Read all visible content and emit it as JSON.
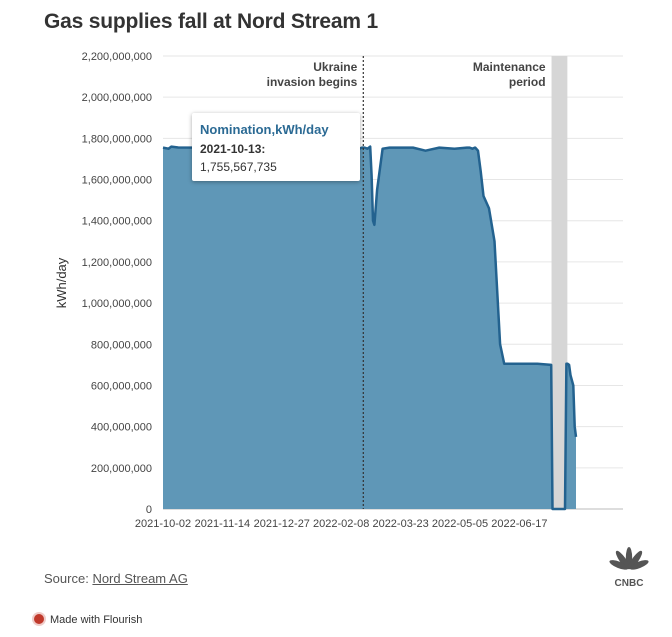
{
  "title": "Gas supplies fall at Nord Stream 1",
  "source": {
    "label": "Source:",
    "link": "Nord Stream AG"
  },
  "credit": "Made with Flourish",
  "logo_text": "CNBC",
  "colors": {
    "area": "#5f97b7",
    "line": "#23628f",
    "band": "#d6d6d6",
    "tooltip_title": "#2b6a94"
  },
  "tooltip": {
    "title": "Nomination,kWh/day",
    "date": "2021-10-13:",
    "value": "1,755,567,735"
  },
  "chart_data": {
    "type": "area",
    "title": "Gas supplies fall at Nord Stream 1",
    "ylabel": "kWh/day",
    "xlabel": "",
    "ylim": [
      0,
      2200000000
    ],
    "xlim": [
      "2021-10-02",
      "2022-08-31"
    ],
    "yticks": [
      "0",
      "200,000,000",
      "400,000,000",
      "600,000,000",
      "800,000,000",
      "1,000,000,000",
      "1,200,000,000",
      "1,400,000,000",
      "1,600,000,000",
      "1,800,000,000",
      "2,000,000,000",
      "2,200,000,000"
    ],
    "ytick_values": [
      0,
      200000000,
      400000000,
      600000000,
      800000000,
      1000000000,
      1200000000,
      1400000000,
      1600000000,
      1800000000,
      2000000000,
      2200000000
    ],
    "xticks": [
      "2021-10-02",
      "2021-11-14",
      "2021-12-27",
      "2022-02-08",
      "2022-03-23",
      "2022-05-05",
      "2022-06-17"
    ],
    "grid": true,
    "series": [
      {
        "name": "Nomination,kWh/day",
        "x": [
          "2021-10-02",
          "2021-10-06",
          "2021-10-08",
          "2021-10-13",
          "2021-11-01",
          "2021-11-20",
          "2021-12-10",
          "2022-01-10",
          "2022-01-18",
          "2022-01-19",
          "2022-01-20",
          "2022-01-22",
          "2022-01-24",
          "2022-01-25",
          "2022-01-26",
          "2022-01-28",
          "2022-02-01",
          "2022-02-05",
          "2022-02-10",
          "2022-02-14",
          "2022-02-20",
          "2022-02-21",
          "2022-02-23",
          "2022-02-25",
          "2022-02-27",
          "2022-03-01",
          "2022-03-02",
          "2022-03-03",
          "2022-03-04",
          "2022-03-06",
          "2022-03-10",
          "2022-03-15",
          "2022-03-20",
          "2022-04-01",
          "2022-04-10",
          "2022-04-20",
          "2022-05-01",
          "2022-05-10",
          "2022-05-12",
          "2022-05-14",
          "2022-05-16",
          "2022-05-18",
          "2022-05-20",
          "2022-05-22",
          "2022-05-26",
          "2022-05-30",
          "2022-06-01",
          "2022-06-03",
          "2022-06-06",
          "2022-06-08",
          "2022-06-10",
          "2022-06-11",
          "2022-06-12",
          "2022-06-13",
          "2022-06-14",
          "2022-06-15",
          "2022-06-17",
          "2022-06-20",
          "2022-06-30",
          "2022-07-10",
          "2022-07-11",
          "2022-07-12",
          "2022-07-20",
          "2022-07-21",
          "2022-07-22",
          "2022-07-23",
          "2022-07-24",
          "2022-07-26",
          "2022-07-27",
          "2022-07-28"
        ],
        "values": [
          1755000000,
          1750000000,
          1760000000,
          1755567735,
          1755000000,
          1750000000,
          1755000000,
          1755000000,
          1740000000,
          1650000000,
          1750000000,
          1640000000,
          1650000000,
          1750000000,
          1760000000,
          1650000000,
          1750000000,
          1755000000,
          1755000000,
          1755000000,
          1755000000,
          1750000000,
          1755000000,
          1755000000,
          1750000000,
          1760000000,
          1620000000,
          1400000000,
          1380000000,
          1550000000,
          1750000000,
          1755000000,
          1755000000,
          1755000000,
          1740000000,
          1755000000,
          1750000000,
          1755000000,
          1755000000,
          1750000000,
          1755000000,
          1740000000,
          1640000000,
          1520000000,
          1460000000,
          1300000000,
          1050000000,
          800000000,
          705000000,
          705000000,
          705000000,
          705000000,
          705000000,
          705000000,
          705000000,
          705000000,
          705000000,
          705000000,
          705000000,
          700000000,
          0,
          0,
          0,
          705000000,
          705000000,
          700000000,
          650000000,
          600000000,
          400000000,
          350000000
        ]
      }
    ],
    "annotations": [
      {
        "label": "Ukraine invasion begins",
        "lines": [
          "Ukraine",
          "invasion begins"
        ],
        "date": "2022-02-24"
      },
      {
        "label": "Maintenance period",
        "lines": [
          "Maintenance",
          "period"
        ],
        "date_range": [
          "2022-07-11",
          "2022-07-21"
        ]
      }
    ]
  }
}
